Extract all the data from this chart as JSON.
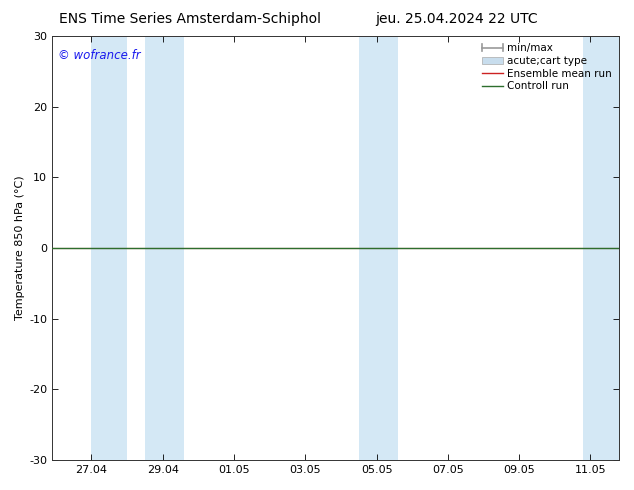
{
  "title_left": "ENS Time Series Amsterdam-Schiphol",
  "title_right": "jeu. 25.04.2024 22 UTC",
  "ylabel": "Temperature 850 hPa (°C)",
  "watermark": "© wofrance.fr",
  "ylim": [
    -30,
    30
  ],
  "yticks": [
    -30,
    -20,
    -10,
    0,
    10,
    20,
    30
  ],
  "xtick_labels": [
    "27.04",
    "29.04",
    "01.05",
    "03.05",
    "05.05",
    "07.05",
    "09.05",
    "11.05"
  ],
  "bg_color": "#ffffff",
  "plot_bg_color": "#ffffff",
  "shaded_color": "#d4e8f5",
  "zero_line_color": "#000000",
  "control_run_color": "#2d6e2d",
  "ensemble_mean_color": "#cc2222",
  "title_fontsize": 10,
  "label_fontsize": 8,
  "tick_fontsize": 8,
  "watermark_color": "#1a1aee",
  "watermark_fontsize": 8.5,
  "legend_fontsize": 7.5,
  "minmax_color": "#aaaaaa",
  "acute_color": "#c8dded"
}
